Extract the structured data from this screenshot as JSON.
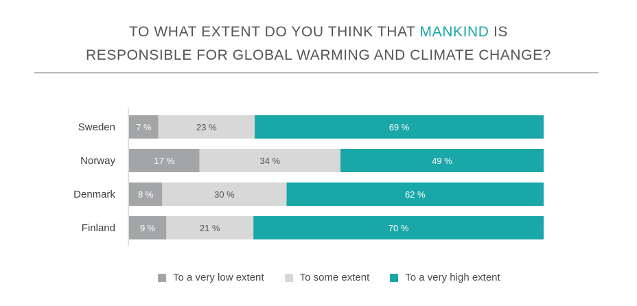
{
  "title": {
    "line1_pre": "TO WHAT EXTENT DO YOU THINK THAT ",
    "line1_highlight": "MANKIND",
    "line1_post": " IS",
    "line2": "RESPONSIBLE FOR GLOBAL WARMING AND CLIMATE CHANGE?"
  },
  "colors": {
    "low": "#a4a5a7",
    "some": "#d8d8d8",
    "high": "#1aa7a7",
    "highlight": "#1aa7a7"
  },
  "chart_data": {
    "type": "bar",
    "orientation": "horizontal",
    "stacked": true,
    "categories": [
      "Sweden",
      "Norway",
      "Denmark",
      "Finland"
    ],
    "series": [
      {
        "name": "To a very low extent",
        "values": [
          7,
          17,
          8,
          9
        ],
        "labels": [
          "7 %",
          "17 %",
          "8 %",
          "9 %"
        ]
      },
      {
        "name": "To some extent",
        "values": [
          23,
          34,
          30,
          21
        ],
        "labels": [
          "23 %",
          "34 %",
          "30 %",
          "21 %"
        ]
      },
      {
        "name": "To a very high extent",
        "values": [
          69,
          49,
          62,
          70
        ],
        "labels": [
          "69 %",
          "49 %",
          "62 %",
          "70 %"
        ]
      }
    ],
    "legend_position": "bottom"
  }
}
